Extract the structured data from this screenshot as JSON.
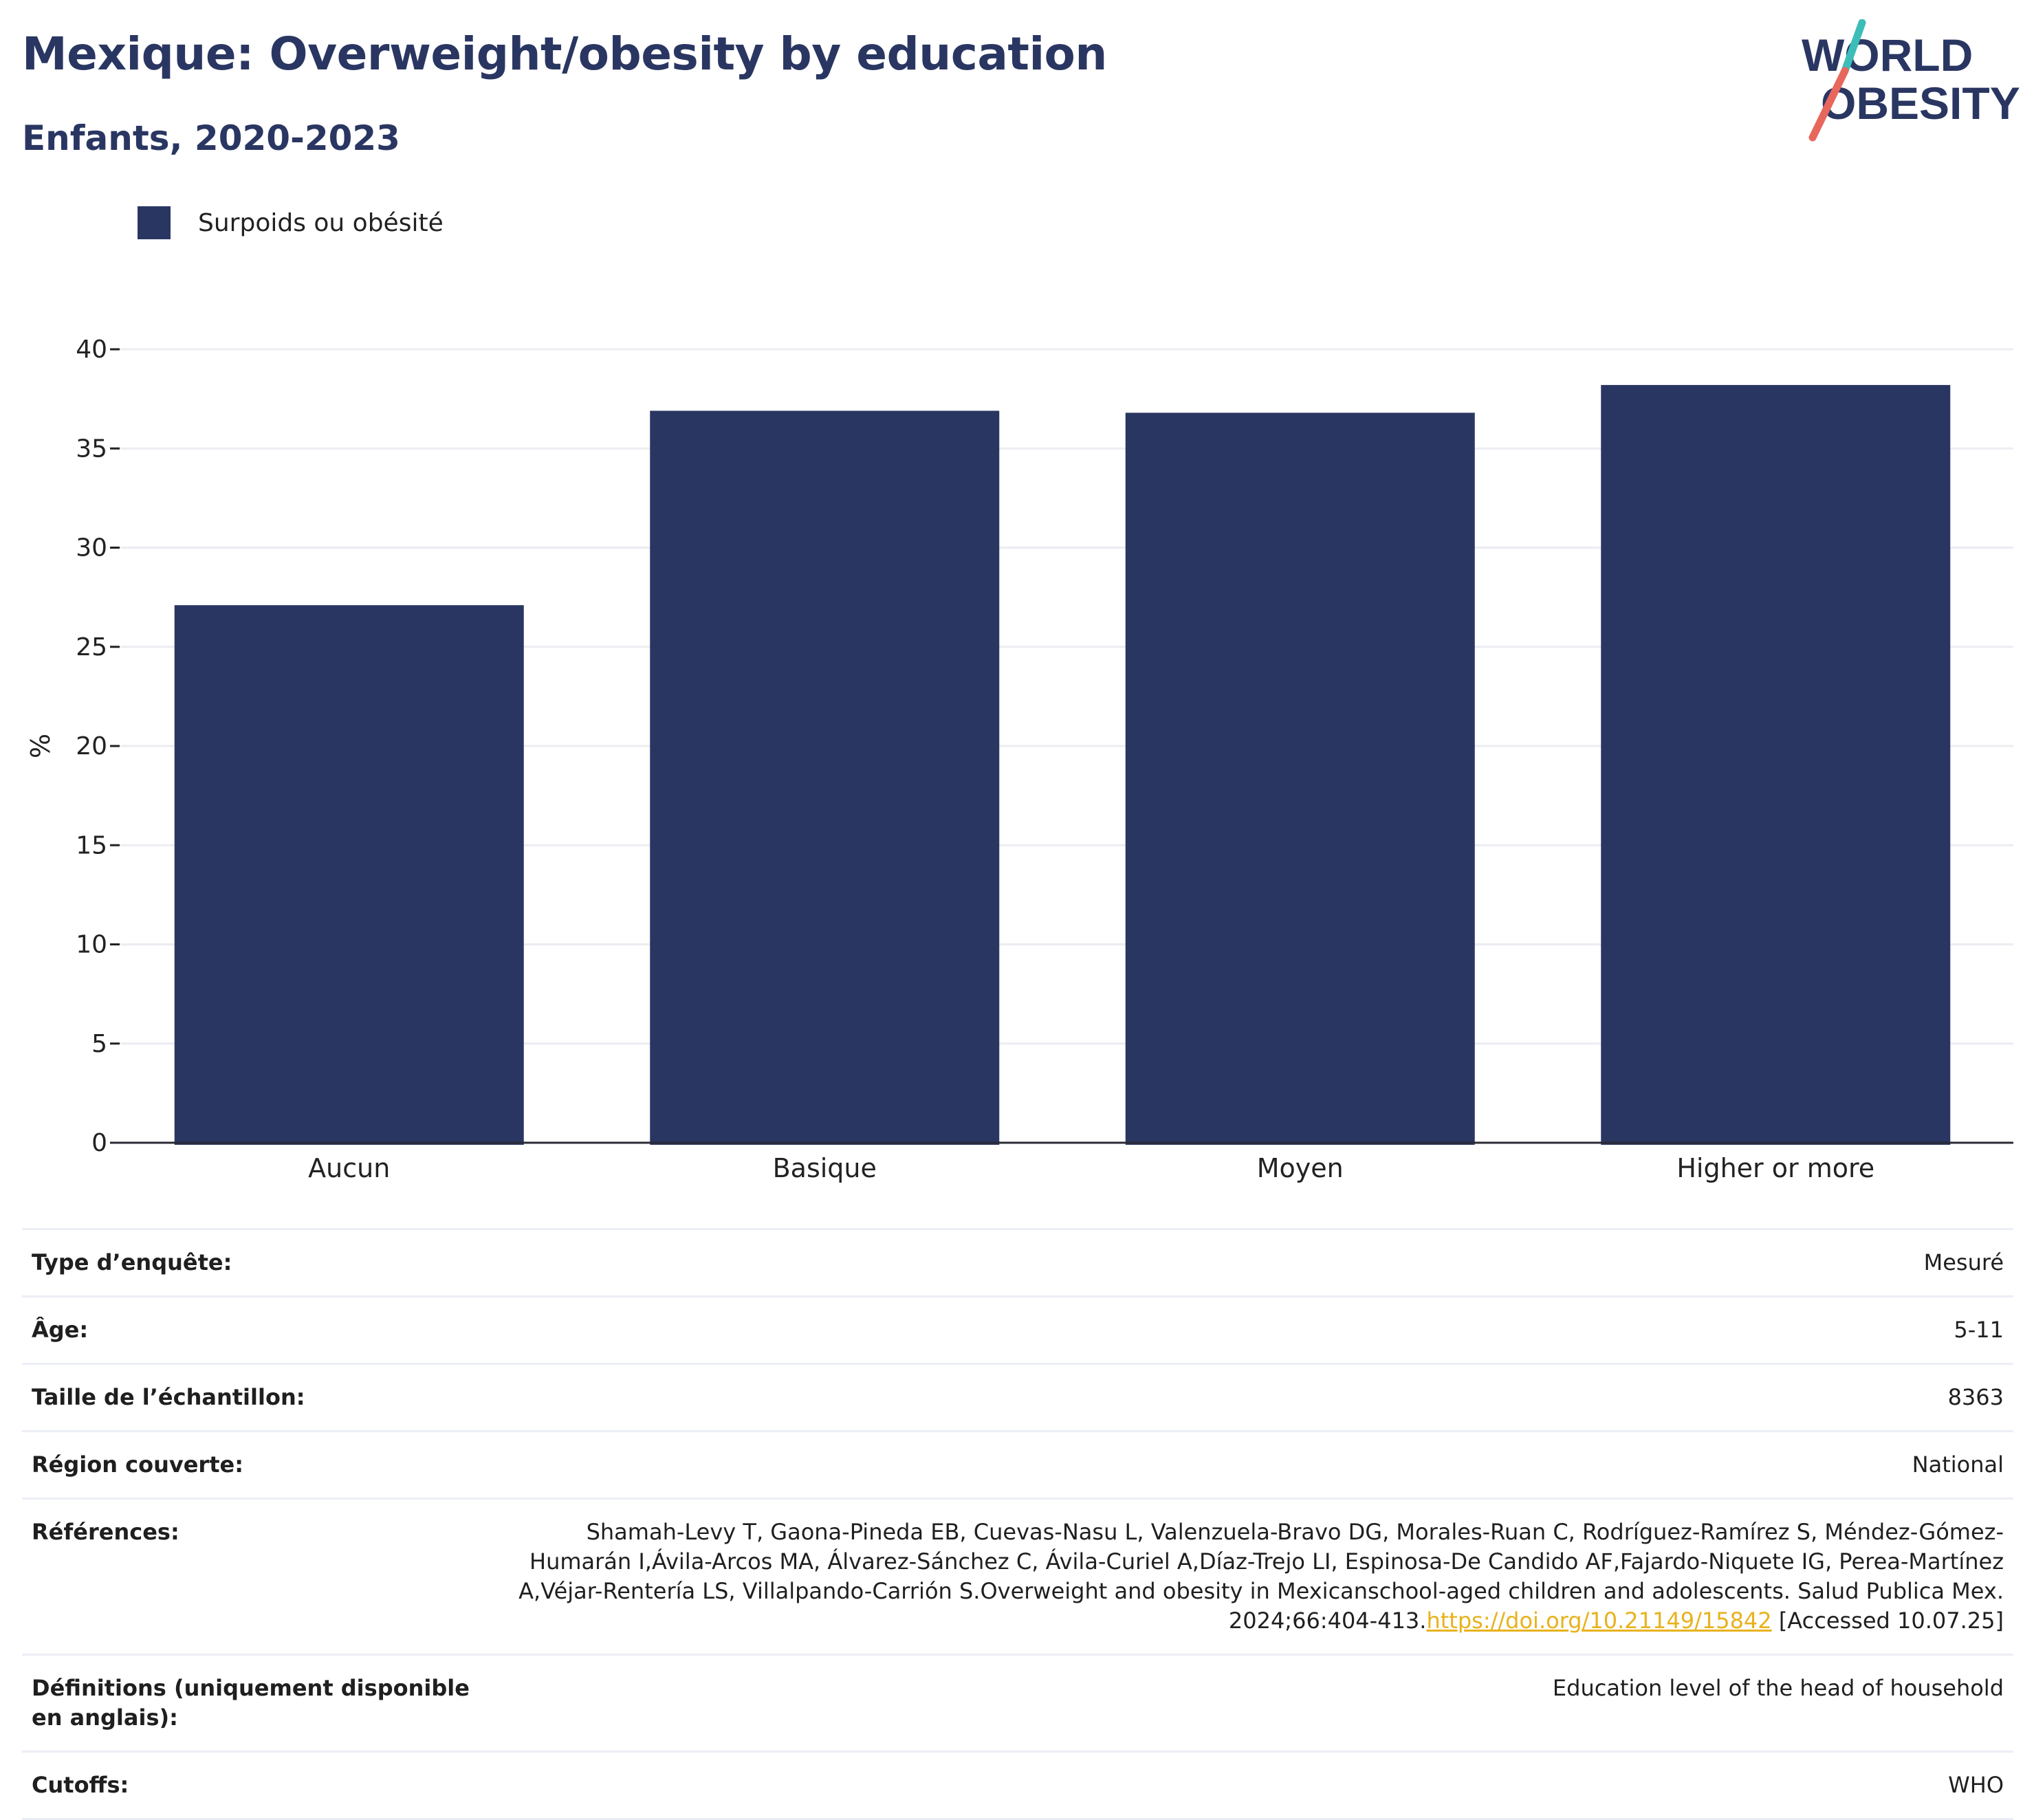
{
  "header": {
    "title": "Mexique: Overweight/obesity by education",
    "subtitle": "Enfants, 2020-2023"
  },
  "logo": {
    "line1": "WORLD",
    "line2": "OBESITY",
    "colors": {
      "text": "#2a3662",
      "slash_top": "#3dbdb8",
      "slash_bottom": "#e8675d"
    }
  },
  "chart_data": {
    "type": "bar",
    "title": "",
    "xlabel": "",
    "ylabel": "%",
    "ylim": [
      0,
      40
    ],
    "yticks": [
      0,
      5,
      10,
      15,
      20,
      25,
      30,
      35,
      40
    ],
    "grid": true,
    "legend_position": "top-left",
    "categories": [
      "Aucun",
      "Basique",
      "Moyen",
      "Higher or more"
    ],
    "series": [
      {
        "name": "Surpoids ou obésité",
        "color": "#2a3662",
        "values": [
          27.1,
          36.9,
          36.8,
          38.2
        ]
      }
    ]
  },
  "meta": {
    "survey_type": {
      "label": "Type d’enquête:",
      "value": "Mesuré"
    },
    "age": {
      "label": "Âge:",
      "value": "5-11"
    },
    "sample_size": {
      "label": "Taille de l’échantillon:",
      "value": "8363"
    },
    "region": {
      "label": "Région couverte:",
      "value": "National"
    },
    "references": {
      "label": "Références:",
      "text": "Shamah-Levy T, Gaona-Pineda EB, Cuevas-Nasu L, Valenzuela-Bravo DG, Morales-Ruan C, Rodríguez-Ramírez S, Méndez-Gómez-Humarán I,Ávila-Arcos MA, Álvarez-Sánchez C, Ávila-Curiel A,Díaz-Trejo LI, Espinosa-De Candido AF,Fajardo-Niquete IG, Perea-Martínez A,Véjar-Rentería LS, Villalpando-Carrión S.Overweight and obesity in Mexicanschool-aged children and adolescents. Salud Publica Mex. 2024;66:404-413.",
      "link": "https://doi.org/10.21149/15842",
      "accessed": " [Accessed 10.07.25]"
    },
    "definitions": {
      "label": "Définitions (uniquement disponible en anglais):",
      "value": "Education level of the head of household"
    },
    "cutoffs": {
      "label": "Cutoffs:",
      "value": "WHO"
    }
  }
}
